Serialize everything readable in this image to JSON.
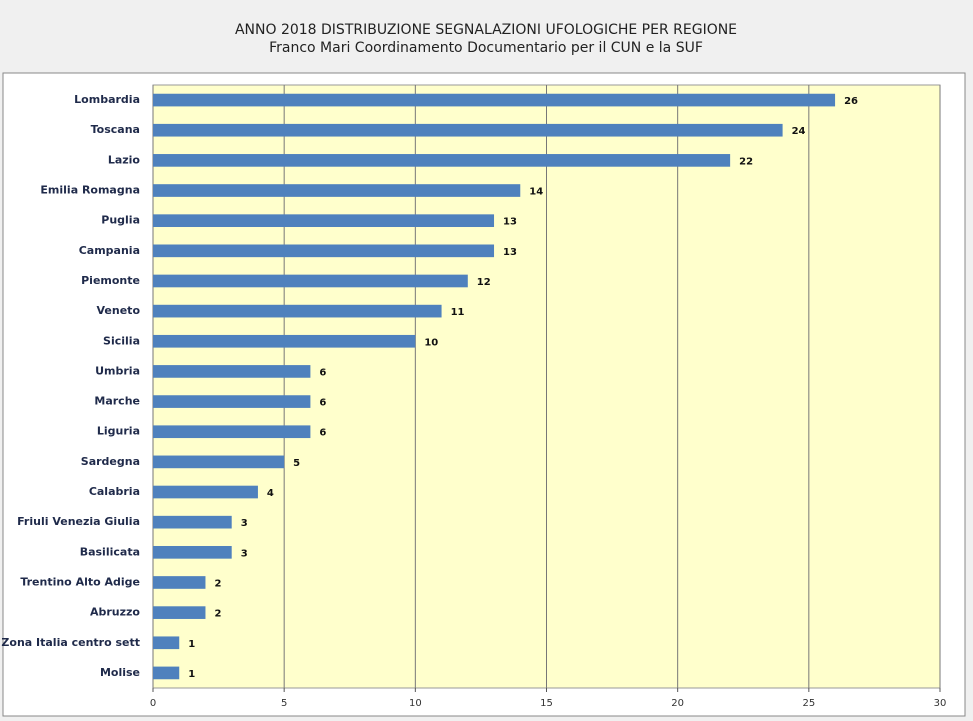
{
  "chart_data": {
    "type": "barh",
    "title": "ANNO 2018  DISTRIBUZIONE SEGNALAZIONI UFOLOGICHE PER REGIONE",
    "subtitle": "Franco Mari Coordinamento Documentario per il CUN e la SUF",
    "categories": [
      "Lombardia",
      "Toscana",
      "Lazio",
      "Emilia Romagna",
      "Puglia",
      "Campania",
      "Piemonte",
      "Veneto",
      "Sicilia",
      "Umbria",
      "Marche",
      "Liguria",
      "Sardegna",
      "Calabria",
      "Friuli Venezia Giulia",
      "Basilicata",
      "Trentino Alto Adige",
      "Abruzzo",
      "Zona Italia centro sett",
      "Molise"
    ],
    "values": [
      26,
      24,
      22,
      14,
      13,
      13,
      12,
      11,
      10,
      6,
      6,
      6,
      5,
      4,
      3,
      3,
      2,
      2,
      1,
      1
    ],
    "color": "#4f81bd",
    "xlim": [
      0,
      30
    ],
    "xticks": [
      0,
      5,
      10,
      15,
      20,
      25,
      30
    ],
    "grid": true
  }
}
